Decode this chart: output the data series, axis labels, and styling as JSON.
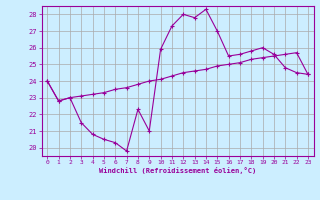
{
  "xlabel": "Windchill (Refroidissement éolien,°C)",
  "background_color": "#cceeff",
  "line_color": "#990099",
  "grid_color": "#aaaaaa",
  "x": [
    0,
    1,
    2,
    3,
    4,
    5,
    6,
    7,
    8,
    9,
    10,
    11,
    12,
    13,
    14,
    15,
    16,
    17,
    18,
    19,
    20,
    21,
    22,
    23
  ],
  "y_upper": [
    24.0,
    22.8,
    23.0,
    21.5,
    20.8,
    20.5,
    20.3,
    19.8,
    22.3,
    21.0,
    25.9,
    27.3,
    28.0,
    27.8,
    28.3,
    27.0,
    25.5,
    25.6,
    25.8,
    26.0,
    25.6,
    24.8,
    24.5,
    24.4
  ],
  "y_lower": [
    24.0,
    22.8,
    23.0,
    23.1,
    23.2,
    23.3,
    23.5,
    23.6,
    23.8,
    24.0,
    24.1,
    24.3,
    24.5,
    24.6,
    24.7,
    24.9,
    25.0,
    25.1,
    25.3,
    25.4,
    25.5,
    25.6,
    25.7,
    24.4
  ],
  "ylim": [
    19.5,
    28.5
  ],
  "yticks": [
    20,
    21,
    22,
    23,
    24,
    25,
    26,
    27,
    28
  ],
  "xticks": [
    0,
    1,
    2,
    3,
    4,
    5,
    6,
    7,
    8,
    9,
    10,
    11,
    12,
    13,
    14,
    15,
    16,
    17,
    18,
    19,
    20,
    21,
    22,
    23
  ],
  "marker": "+"
}
